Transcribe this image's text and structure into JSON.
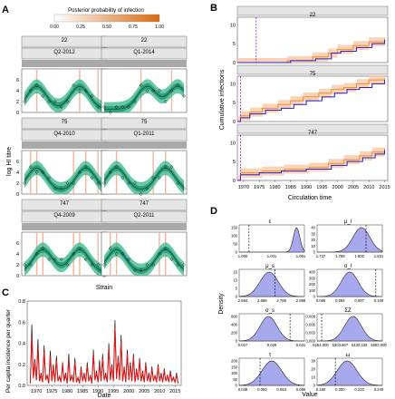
{
  "panel_labels": [
    "A",
    "B",
    "C",
    "D"
  ],
  "colors": {
    "fit_band": "#38b58e",
    "fit_band_dark": "#1e9a70",
    "fit_line": "#1c4a3c",
    "obs_marker": "#111111",
    "infection_lines": "#f6b49a",
    "colorbar_low": "#ffffff",
    "colorbar_high": "#d96a10",
    "cum_band": "#f9c8a7",
    "cum_est": "#f28c28",
    "cum_true": "#2020c8",
    "cum_marker": "#9a2fc7",
    "series_data": "#111111",
    "series_model": "#e01818",
    "density_fill": "#a8a8ee",
    "density_dash": "#111111",
    "strip_bg": "#e5e5e5",
    "grey_bar": "#a9a9a9"
  },
  "chart_data": [
    {
      "id": "A",
      "type": "line",
      "colorbar": {
        "title": "Posterior probability of infection",
        "ticks": [
          "0.00",
          "0.25",
          "0.50",
          "0.75",
          "1.00"
        ]
      },
      "ylabel": "log HI titre",
      "xlabel": "Strain",
      "yticks": [
        "0",
        "2",
        "4",
        "6"
      ],
      "ylim": [
        0,
        8
      ],
      "facets": [
        {
          "individual": "22",
          "strain": "Q2-2012",
          "peaks": [
            2,
            9
          ],
          "infections": [
            2,
            9,
            12
          ]
        },
        {
          "individual": "22",
          "strain": "Q1-2014",
          "peaks": [
            7,
            12
          ],
          "infections": [
            6,
            11
          ]
        },
        {
          "individual": "75",
          "strain": "Q4-2010",
          "peaks": [
            2,
            10
          ],
          "infections": [
            1,
            2,
            8,
            10,
            12
          ]
        },
        {
          "individual": "75",
          "strain": "Q1-2011",
          "peaks": [
            2,
            10
          ],
          "infections": [
            2,
            8,
            10
          ]
        },
        {
          "individual": "747",
          "strain": "Q4-2009",
          "peaks": [
            3,
            9
          ],
          "infections": [
            2,
            3,
            8,
            9,
            12
          ]
        },
        {
          "individual": "747",
          "strain": "Q2-2011",
          "peaks": [
            2,
            10
          ],
          "infections": [
            1,
            2,
            9,
            10
          ]
        }
      ]
    },
    {
      "id": "B",
      "type": "line",
      "ylabel": "Cumulative infections",
      "xlabel": "Circulation time",
      "x_ticks": [
        "1970",
        "1975",
        "1980",
        "1985",
        "1990",
        "1995",
        "2000",
        "2005",
        "2010",
        "2015"
      ],
      "xlim": [
        1968,
        2016
      ],
      "ylim": [
        0,
        12
      ],
      "yticks": [
        "0",
        "5",
        "10"
      ],
      "facets": [
        {
          "individual": "22",
          "birth": 1974,
          "true_steps": [
            [
              1968,
              0
            ],
            [
              1976,
              0
            ],
            [
              1985,
              0.5
            ],
            [
              1993,
              1
            ],
            [
              1998,
              2.5
            ],
            [
              2001,
              3
            ],
            [
              2006,
              4
            ],
            [
              2011,
              5
            ],
            [
              2015,
              6
            ]
          ],
          "est_steps": [
            [
              1968,
              0
            ],
            [
              1976,
              0
            ],
            [
              1984,
              0.5
            ],
            [
              1992,
              1.5
            ],
            [
              1997,
              2.5
            ],
            [
              2000,
              3.5
            ],
            [
              2005,
              4.5
            ],
            [
              2010,
              5.5
            ],
            [
              2015,
              6.5
            ]
          ]
        },
        {
          "individual": "75",
          "birth": 1969,
          "true_steps": [
            [
              1968,
              0
            ],
            [
              1969,
              1
            ],
            [
              1972,
              2
            ],
            [
              1977,
              3
            ],
            [
              1982,
              3.5
            ],
            [
              1986,
              4.5
            ],
            [
              1990,
              5.5
            ],
            [
              1995,
              6.5
            ],
            [
              1999,
              7.5
            ],
            [
              2003,
              8.5
            ],
            [
              2007,
              9
            ],
            [
              2011,
              10
            ],
            [
              2015,
              11
            ]
          ],
          "est_steps": [
            [
              1968,
              0
            ],
            [
              1969,
              1.5
            ],
            [
              1972,
              2.5
            ],
            [
              1976,
              3.5
            ],
            [
              1981,
              4.5
            ],
            [
              1985,
              5.5
            ],
            [
              1989,
              6.5
            ],
            [
              1994,
              7.5
            ],
            [
              1998,
              8.5
            ],
            [
              2002,
              9
            ],
            [
              2006,
              10
            ],
            [
              2010,
              11
            ],
            [
              2015,
              11.5
            ]
          ]
        },
        {
          "individual": "747",
          "birth": 1969,
          "true_steps": [
            [
              1968,
              0
            ],
            [
              1969,
              1.5
            ],
            [
              1975,
              2
            ],
            [
              1982,
              2.5
            ],
            [
              1990,
              3
            ],
            [
              1998,
              4
            ],
            [
              2003,
              5
            ],
            [
              2008,
              6
            ],
            [
              2012,
              7
            ],
            [
              2015,
              8
            ]
          ],
          "est_steps": [
            [
              1968,
              0
            ],
            [
              1969,
              2
            ],
            [
              1976,
              2.5
            ],
            [
              1983,
              3
            ],
            [
              1991,
              3.5
            ],
            [
              1997,
              4.5
            ],
            [
              2002,
              5.5
            ],
            [
              2007,
              6.5
            ],
            [
              2011,
              7.5
            ],
            [
              2015,
              8.5
            ]
          ]
        }
      ]
    },
    {
      "id": "C",
      "type": "line",
      "ylabel": "Per capita incidence per quarter",
      "xlabel": "Date",
      "x_ticks": [
        "1970",
        "1975",
        "1980",
        "1985",
        "1990",
        "1995",
        "2000",
        "2005",
        "2010",
        "2015"
      ],
      "xlim": [
        1967,
        2017
      ],
      "ylim": [
        0,
        0.8
      ],
      "yticks": [
        "0.0",
        "0.2",
        "0.4",
        "0.6",
        "0.8"
      ],
      "series": [
        {
          "role": "data",
          "x": [
            1968,
            1968.5,
            1969,
            1969.5,
            1970,
            1970.5,
            1971,
            1971.5,
            1972,
            1972.5,
            1973,
            1973.5,
            1974,
            1974.5,
            1975,
            1975.5,
            1976,
            1976.5,
            1977,
            1977.5,
            1978,
            1978.5,
            1979,
            1979.5,
            1980,
            1980.5,
            1981,
            1981.5,
            1982,
            1982.5,
            1983,
            1983.5,
            1984,
            1984.5,
            1985,
            1985.5,
            1986,
            1986.5,
            1987,
            1987.5,
            1988,
            1988.5,
            1989,
            1989.5,
            1990,
            1990.5,
            1991,
            1991.5,
            1992,
            1992.5,
            1993,
            1993.5,
            1994,
            1994.5,
            1995,
            1995.5,
            1996,
            1996.5,
            1997,
            1997.5,
            1998,
            1998.5,
            1999,
            1999.5,
            2000,
            2000.5,
            2001,
            2001.5,
            2002,
            2002.5,
            2003,
            2003.5,
            2004,
            2004.5,
            2005,
            2005.5,
            2006,
            2006.5,
            2007,
            2007.5,
            2008,
            2008.5,
            2009,
            2009.5,
            2010,
            2010.5,
            2011,
            2011.5,
            2012,
            2012.5,
            2013,
            2013.5,
            2014,
            2014.5,
            2015,
            2015.5,
            2016
          ],
          "y": [
            0.02,
            0.58,
            0.08,
            0.25,
            0.05,
            0.44,
            0.04,
            0.12,
            0.03,
            0.38,
            0.06,
            0.1,
            0.02,
            0.33,
            0.05,
            0.2,
            0.03,
            0.28,
            0.04,
            0.09,
            0.03,
            0.22,
            0.05,
            0.12,
            0.02,
            0.3,
            0.04,
            0.1,
            0.03,
            0.26,
            0.03,
            0.08,
            0.02,
            0.18,
            0.04,
            0.12,
            0.03,
            0.22,
            0.04,
            0.1,
            0.02,
            0.34,
            0.05,
            0.14,
            0.03,
            0.24,
            0.04,
            0.3,
            0.05,
            0.12,
            0.03,
            0.4,
            0.05,
            0.2,
            0.04,
            0.62,
            0.06,
            0.28,
            0.05,
            0.48,
            0.04,
            0.18,
            0.03,
            0.34,
            0.05,
            0.22,
            0.04,
            0.3,
            0.03,
            0.16,
            0.05,
            0.26,
            0.04,
            0.14,
            0.03,
            0.22,
            0.04,
            0.12,
            0.03,
            0.18,
            0.04,
            0.1,
            0.03,
            0.2,
            0.04,
            0.12,
            0.03,
            0.16,
            0.04,
            0.1,
            0.03,
            0.14,
            0.04,
            0.08,
            0.03,
            0.12,
            0.02
          ]
        },
        {
          "role": "model",
          "x": [
            1968,
            1968.5,
            1969,
            1969.5,
            1970,
            1970.5,
            1971,
            1971.5,
            1972,
            1972.5,
            1973,
            1973.5,
            1974,
            1974.5,
            1975,
            1975.5,
            1976,
            1976.5,
            1977,
            1977.5,
            1978,
            1978.5,
            1979,
            1979.5,
            1980,
            1980.5,
            1981,
            1981.5,
            1982,
            1982.5,
            1983,
            1983.5,
            1984,
            1984.5,
            1985,
            1985.5,
            1986,
            1986.5,
            1987,
            1987.5,
            1988,
            1988.5,
            1989,
            1989.5,
            1990,
            1990.5,
            1991,
            1991.5,
            1992,
            1992.5,
            1993,
            1993.5,
            1994,
            1994.5,
            1995,
            1995.5,
            1996,
            1996.5,
            1997,
            1997.5,
            1998,
            1998.5,
            1999,
            1999.5,
            2000,
            2000.5,
            2001,
            2001.5,
            2002,
            2002.5,
            2003,
            2003.5,
            2004,
            2004.5,
            2005,
            2005.5,
            2006,
            2006.5,
            2007,
            2007.5,
            2008,
            2008.5,
            2009,
            2009.5,
            2010,
            2010.5,
            2011,
            2011.5,
            2012,
            2012.5,
            2013,
            2013.5,
            2014,
            2014.5,
            2015,
            2015.5,
            2016
          ],
          "y": [
            0.02,
            0.46,
            0.07,
            0.22,
            0.05,
            0.36,
            0.04,
            0.1,
            0.03,
            0.32,
            0.05,
            0.09,
            0.02,
            0.28,
            0.04,
            0.17,
            0.03,
            0.24,
            0.04,
            0.08,
            0.03,
            0.2,
            0.04,
            0.1,
            0.02,
            0.25,
            0.04,
            0.09,
            0.03,
            0.22,
            0.03,
            0.07,
            0.02,
            0.16,
            0.04,
            0.1,
            0.03,
            0.19,
            0.04,
            0.09,
            0.02,
            0.3,
            0.05,
            0.12,
            0.03,
            0.2,
            0.04,
            0.26,
            0.05,
            0.1,
            0.03,
            0.36,
            0.05,
            0.18,
            0.04,
            0.55,
            0.06,
            0.25,
            0.05,
            0.42,
            0.04,
            0.16,
            0.03,
            0.3,
            0.05,
            0.2,
            0.04,
            0.27,
            0.03,
            0.14,
            0.05,
            0.23,
            0.04,
            0.12,
            0.03,
            0.2,
            0.04,
            0.1,
            0.03,
            0.16,
            0.04,
            0.09,
            0.03,
            0.18,
            0.04,
            0.1,
            0.03,
            0.14,
            0.04,
            0.09,
            0.03,
            0.12,
            0.04,
            0.07,
            0.03,
            0.1,
            0.02
          ]
        }
      ]
    },
    {
      "id": "D",
      "type": "area",
      "ylabel": "Density",
      "xlabel": "Value",
      "panels": [
        {
          "title": "ε",
          "xticks": [
            "1.000",
            "1.031",
            "1.061"
          ],
          "yticks": [
            "0",
            "50",
            "100",
            "150"
          ],
          "dash": 0.15,
          "mu": 0.88,
          "sd": 0.05
        },
        {
          "title": "μ_l",
          "xticks": [
            "1.737",
            "1.769",
            "1.800",
            "1.831"
          ],
          "yticks": [
            "0",
            "10",
            "20",
            "30",
            "40"
          ],
          "dash": 0.75,
          "mu": 0.68,
          "sd": 0.13
        },
        {
          "title": "μ_s",
          "xticks": [
            "2.584",
            "2.688",
            "2.788",
            "2.988"
          ],
          "yticks": [
            "0",
            "5",
            "10",
            "15"
          ],
          "dash": 0.55,
          "mu": 0.46,
          "sd": 0.14
        },
        {
          "title": "σ_l",
          "xticks": [
            "0.086",
            "0.094",
            "0.097",
            "0.100"
          ],
          "yticks": [
            "0",
            "100",
            "200",
            "300",
            "400"
          ],
          "dash": 0.9,
          "mu": 0.5,
          "sd": 0.13
        },
        {
          "title": "σ_s",
          "xticks": [
            "0.027",
            "0.029",
            "0.031"
          ],
          "yticks": [
            "0",
            "200",
            "400",
            "600"
          ],
          "dash": 0.78,
          "mu": 0.45,
          "sd": 0.13
        },
        {
          "title": "ΣZ",
          "xticks": [
            "5254.000",
            "5303.667",
            "5433.333",
            "5503.000"
          ],
          "yticks": [
            "0.000",
            "0.003",
            "0.005",
            "0.008"
          ],
          "dash": 0.07,
          "mu": 0.55,
          "sd": 0.13
        },
        {
          "title": "τ",
          "xticks": [
            "0.048",
            "0.050",
            "0.053",
            "0.056"
          ],
          "yticks": [
            "0",
            "50",
            "100",
            "150",
            "200"
          ],
          "dash": 0.32,
          "mu": 0.5,
          "sd": 0.15
        },
        {
          "title": "ω",
          "xticks": [
            "0.180",
            "0.200",
            "0.220",
            "0.240"
          ],
          "yticks": [
            "0",
            "10",
            "20",
            "30"
          ],
          "dash": 0.28,
          "mu": 0.46,
          "sd": 0.15
        }
      ]
    }
  ]
}
